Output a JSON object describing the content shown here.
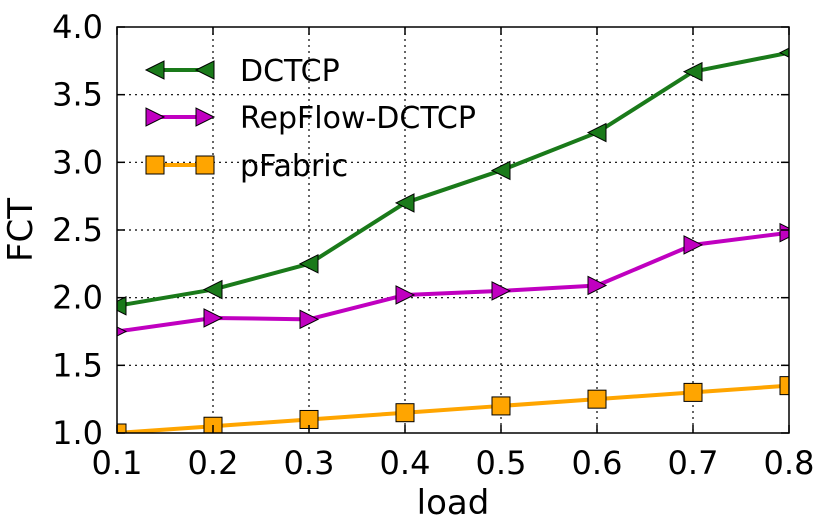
{
  "chart_data": {
    "type": "line",
    "title": "",
    "xlabel": "load",
    "ylabel": "FCT",
    "xlim": [
      0.1,
      0.8
    ],
    "ylim": [
      1.0,
      4.0
    ],
    "xticks": [
      "0.1",
      "0.2",
      "0.3",
      "0.4",
      "0.5",
      "0.6",
      "0.7",
      "0.8"
    ],
    "yticks": [
      "1.0",
      "1.5",
      "2.0",
      "2.5",
      "3.0",
      "3.5",
      "4.0"
    ],
    "grid": true,
    "legend_position": "top-left",
    "x": [
      0.1,
      0.2,
      0.3,
      0.4,
      0.5,
      0.6,
      0.7,
      0.8
    ],
    "series": [
      {
        "name": "DCTCP",
        "color": "#1a7a1a",
        "marker": "triangle-left",
        "values": [
          1.94,
          2.06,
          2.25,
          2.7,
          2.94,
          3.22,
          3.67,
          3.81
        ]
      },
      {
        "name": "RepFlow-DCTCP",
        "color": "#c000c0",
        "marker": "triangle-right",
        "values": [
          1.75,
          1.85,
          1.84,
          2.02,
          2.05,
          2.09,
          2.39,
          2.48
        ]
      },
      {
        "name": "pFabric",
        "color": "#ffa500",
        "marker": "square",
        "values": [
          1.0,
          1.05,
          1.1,
          1.15,
          1.2,
          1.25,
          1.3,
          1.35
        ]
      }
    ]
  }
}
